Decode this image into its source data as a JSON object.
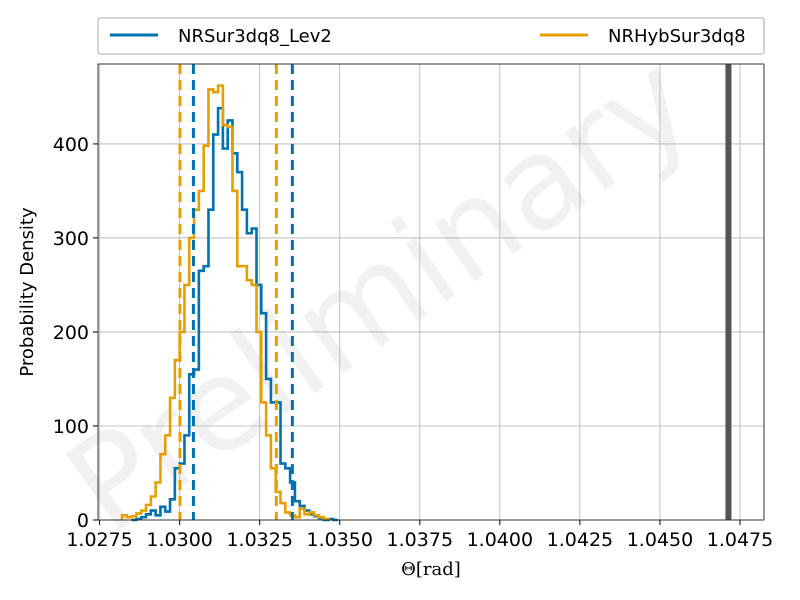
{
  "chart_data": {
    "type": "histogram",
    "title": "",
    "xlabel": "Θ[rad]",
    "ylabel": "Probability Density",
    "watermark": "Preliminary",
    "xlim": [
      1.02745,
      1.04825
    ],
    "ylim": [
      0,
      485
    ],
    "x_ticks": [
      1.0275,
      1.03,
      1.0325,
      1.035,
      1.0375,
      1.04,
      1.0425,
      1.045,
      1.0475
    ],
    "x_tick_labels": [
      "1.0275",
      "1.0300",
      "1.0325",
      "1.0350",
      "1.0375",
      "1.0400",
      "1.0425",
      "1.0450",
      "1.0475"
    ],
    "y_ticks": [
      0,
      100,
      200,
      300,
      400
    ],
    "y_tick_labels": [
      "0",
      "100",
      "200",
      "300",
      "400"
    ],
    "grid": true,
    "legend_position": "top (above plot)",
    "bin_width": 0.00015,
    "series": [
      {
        "name": "NRSur3dq8_Lev2",
        "color": "#0072b2",
        "bin_start": 1.0285,
        "values": [
          0,
          1,
          3,
          6,
          10,
          5,
          14,
          9,
          22,
          55,
          60,
          90,
          155,
          160,
          265,
          270,
          330,
          410,
          438,
          395,
          425,
          390,
          370,
          330,
          305,
          310,
          250,
          220,
          150,
          125,
          125,
          60,
          55,
          40,
          20,
          15,
          10,
          6,
          4,
          2,
          0,
          1,
          0
        ],
        "ci_lines": [
          1.03043,
          1.03352
        ]
      },
      {
        "name": "NRHybSur3dq8",
        "color": "#e69f00",
        "bin_start": 1.0282,
        "values": [
          5,
          3,
          4,
          7,
          10,
          16,
          25,
          40,
          70,
          90,
          130,
          170,
          200,
          250,
          300,
          330,
          350,
          398,
          458,
          455,
          462,
          420,
          418,
          350,
          270,
          270,
          255,
          250,
          200,
          125,
          90,
          55,
          30,
          18,
          8,
          5,
          3,
          12,
          6,
          8,
          5,
          3,
          1
        ],
        "ci_lines": [
          1.03001,
          1.03302
        ]
      }
    ],
    "reference_line": {
      "x": 1.04714,
      "color": "#555555"
    }
  }
}
